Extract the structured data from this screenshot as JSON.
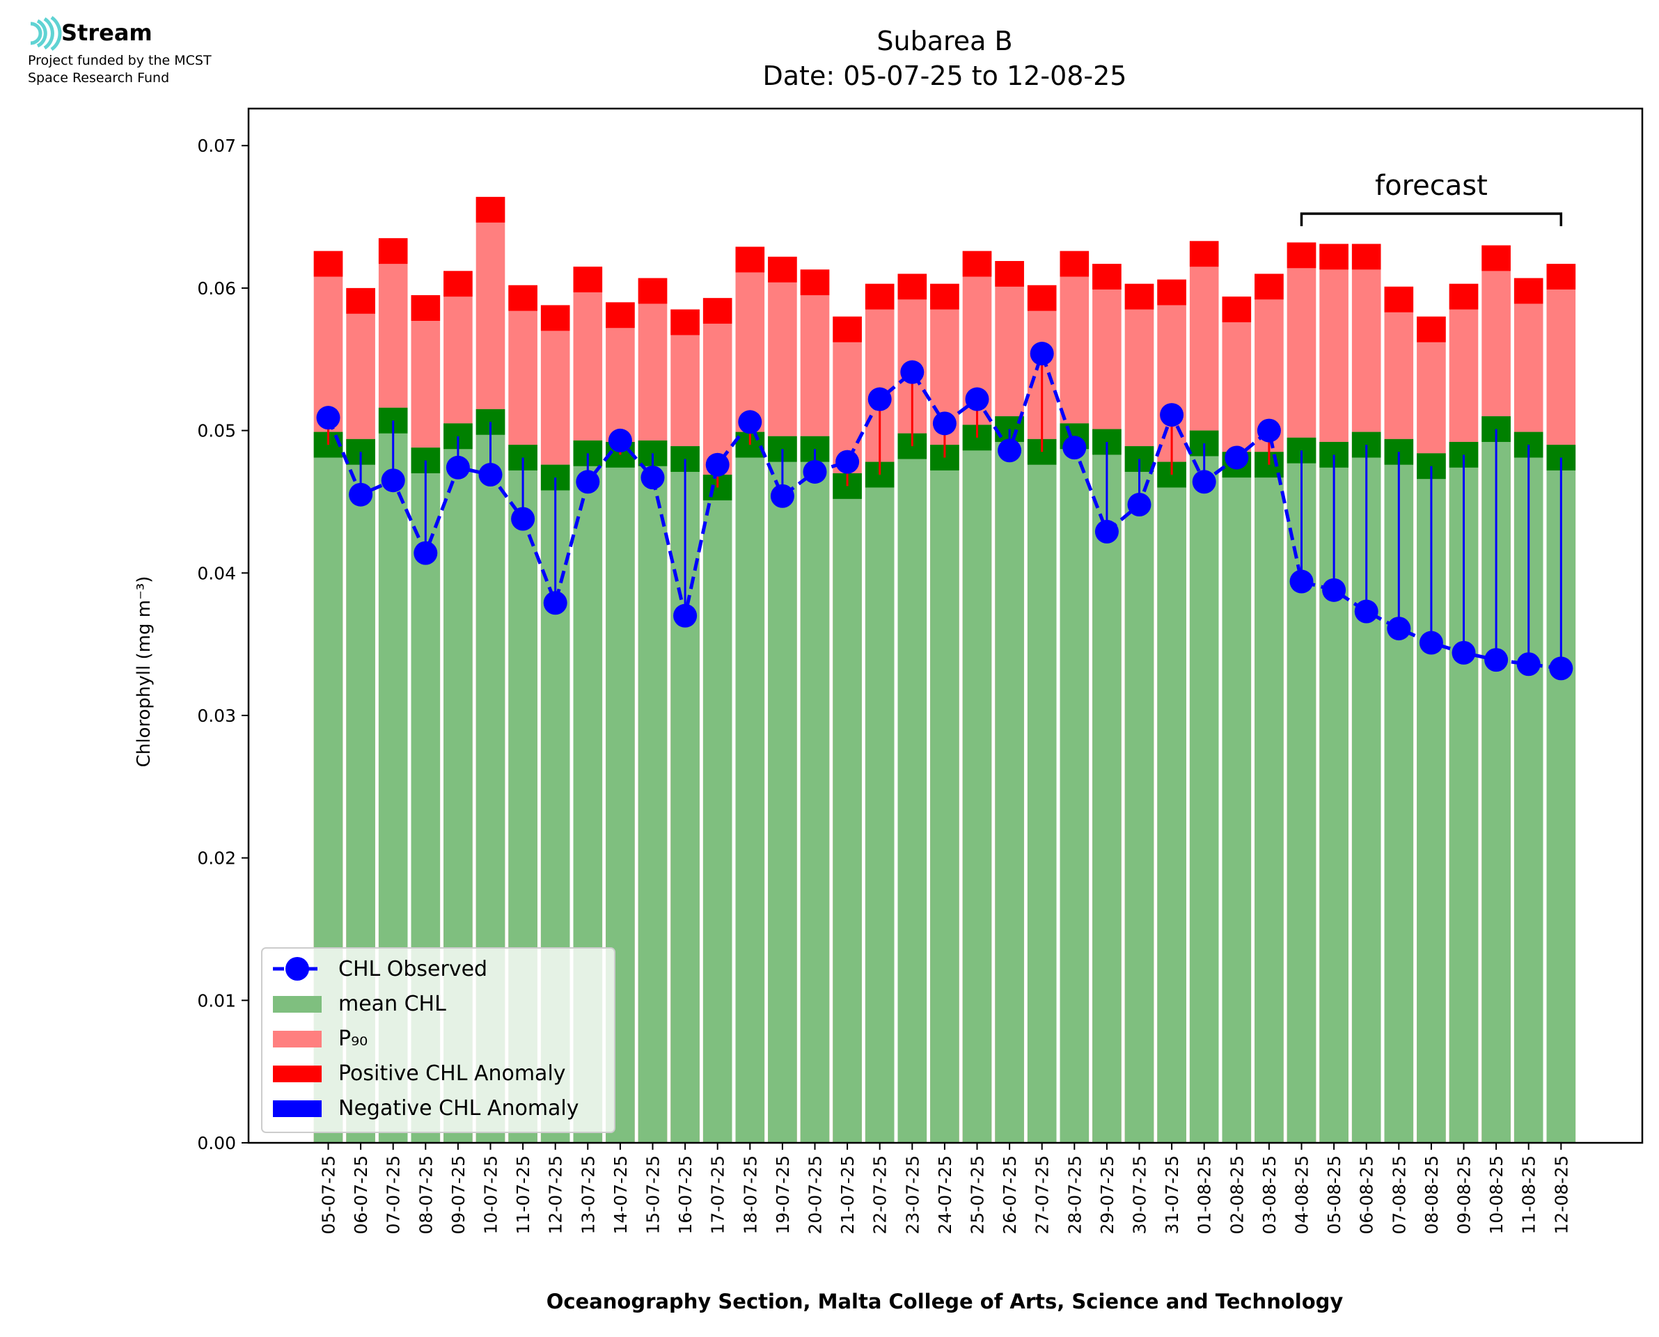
{
  "logo": {
    "name": "Stream",
    "line1": "Project funded by the MCST",
    "line2": "Space Research Fund",
    "color": "#5fd3d3"
  },
  "chart_data": {
    "type": "bar",
    "title": "Subarea B",
    "subtitle": "Date: 05-07-25 to 12-08-25",
    "xlabel": "Oceanography Section, Malta College of Arts, Science and Technology",
    "ylabel": "Chlorophyll (mg m⁻³)",
    "ylim": [
      0,
      0.0726
    ],
    "yticks": [
      "0.00",
      "0.01",
      "0.02",
      "0.03",
      "0.04",
      "0.05",
      "0.06",
      "0.07"
    ],
    "grid": false,
    "legend_position": "lower-left",
    "annotation": "forecast",
    "forecast_range": [
      "04-08-25",
      "12-08-25"
    ],
    "colors": {
      "mean": "#7fbf7f",
      "mean_band": "#008000",
      "p90": "#ff7f7f",
      "p90_band": "#ff0000",
      "observed": "#0000ff",
      "negative_anomaly": "#0000ff",
      "positive_anomaly": "#ff0000"
    },
    "categories": [
      "05-07-25",
      "06-07-25",
      "07-07-25",
      "08-07-25",
      "09-07-25",
      "10-07-25",
      "11-07-25",
      "12-07-25",
      "13-07-25",
      "14-07-25",
      "15-07-25",
      "16-07-25",
      "17-07-25",
      "18-07-25",
      "19-07-25",
      "20-07-25",
      "21-07-25",
      "22-07-25",
      "23-07-25",
      "24-07-25",
      "25-07-25",
      "26-07-25",
      "27-07-25",
      "28-07-25",
      "29-07-25",
      "30-07-25",
      "31-07-25",
      "01-08-25",
      "02-08-25",
      "03-08-25",
      "04-08-25",
      "05-08-25",
      "06-08-25",
      "07-08-25",
      "08-08-25",
      "09-08-25",
      "10-08-25",
      "11-08-25",
      "12-08-25"
    ],
    "series": [
      {
        "name": "CHL Observed",
        "values": [
          0.0509,
          0.0455,
          0.0465,
          0.0414,
          0.0474,
          0.0469,
          0.0438,
          0.0379,
          0.0464,
          0.0493,
          0.0467,
          0.037,
          0.0476,
          0.0506,
          0.0454,
          0.0471,
          0.0478,
          0.0522,
          0.0541,
          0.0505,
          0.0522,
          0.0486,
          0.0554,
          0.0488,
          0.0429,
          0.0448,
          0.0511,
          0.0464,
          0.0481,
          0.05,
          0.0394,
          0.0388,
          0.0373,
          0.0361,
          0.0351,
          0.0344,
          0.0339,
          0.0336,
          0.0333
        ]
      },
      {
        "name": "mean CHL",
        "values": [
          0.049,
          0.0485,
          0.0507,
          0.0479,
          0.0496,
          0.0506,
          0.0481,
          0.0467,
          0.0484,
          0.0483,
          0.0484,
          0.048,
          0.046,
          0.049,
          0.0487,
          0.0487,
          0.0461,
          0.0469,
          0.0489,
          0.0481,
          0.0495,
          0.0501,
          0.0485,
          0.0496,
          0.0492,
          0.048,
          0.0469,
          0.0491,
          0.0476,
          0.0476,
          0.0486,
          0.0483,
          0.049,
          0.0485,
          0.0475,
          0.0483,
          0.0501,
          0.049,
          0.0481
        ]
      },
      {
        "name": "P₉₀",
        "values": [
          0.0617,
          0.0591,
          0.0626,
          0.0586,
          0.0603,
          0.0655,
          0.0593,
          0.0579,
          0.0606,
          0.0581,
          0.0598,
          0.0576,
          0.0584,
          0.062,
          0.0613,
          0.0604,
          0.0571,
          0.0594,
          0.0601,
          0.0594,
          0.0617,
          0.061,
          0.0593,
          0.0617,
          0.0608,
          0.0594,
          0.0597,
          0.0624,
          0.0585,
          0.0601,
          0.0623,
          0.0622,
          0.0622,
          0.0592,
          0.0571,
          0.0594,
          0.0621,
          0.0598,
          0.0608
        ]
      }
    ],
    "legend": [
      "CHL Observed",
      "mean CHL",
      "P₉₀",
      "Positive CHL Anomaly",
      "Negative CHL Anomaly"
    ]
  }
}
